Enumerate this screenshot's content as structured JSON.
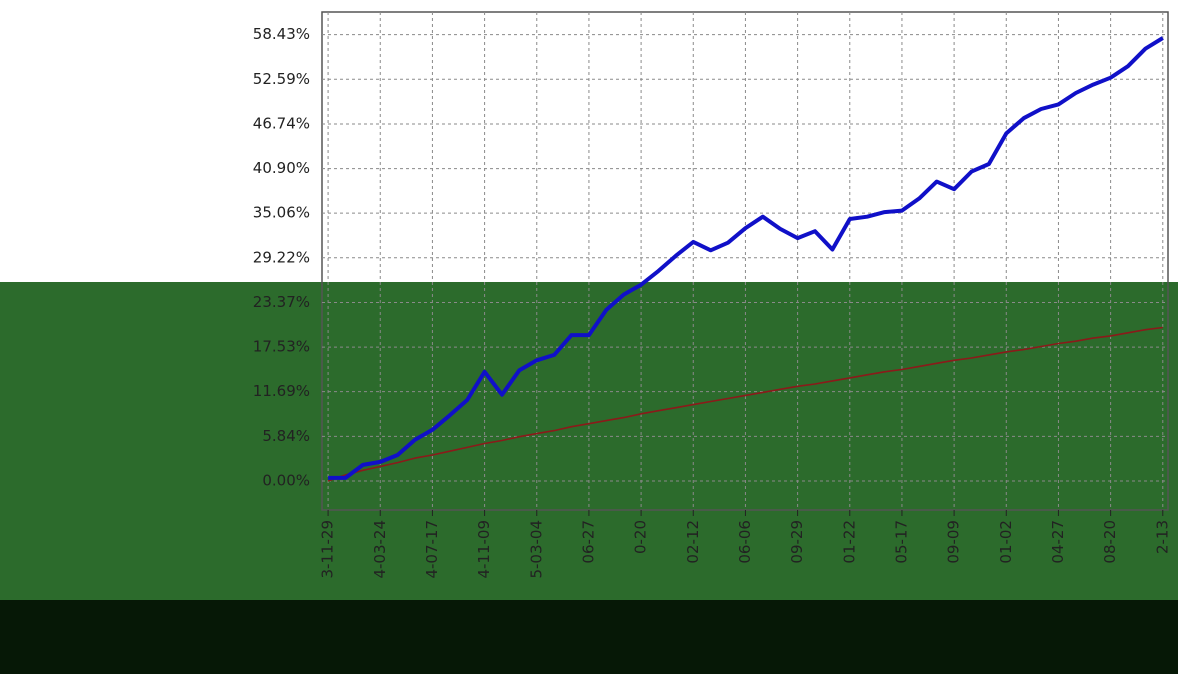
{
  "chart_data": {
    "type": "line",
    "x": [
      0,
      1,
      2,
      3,
      4,
      5,
      6,
      7,
      8,
      9,
      10,
      11,
      12,
      13,
      14,
      15,
      16,
      17,
      18,
      19,
      20,
      21,
      22,
      23,
      24,
      25,
      26,
      27,
      28,
      29,
      30,
      31,
      32,
      33,
      34,
      35,
      36,
      37,
      38,
      39,
      40,
      41,
      42,
      43,
      44,
      45,
      46,
      47,
      48
    ],
    "series": [
      {
        "color": "#1010c8",
        "values": [
          0.4,
          0.4,
          2.1,
          2.5,
          3.4,
          5.4,
          6.7,
          8.6,
          10.6,
          14.3,
          11.3,
          14.5,
          15.8,
          16.5,
          19.1,
          19.1,
          22.4,
          24.4,
          25.7,
          27.5,
          29.5,
          31.3,
          30.2,
          31.2,
          33.1,
          34.6,
          33.0,
          31.8,
          32.7,
          30.3,
          34.3,
          34.6,
          35.2,
          35.4,
          37.0,
          39.2,
          38.2,
          40.5,
          41.5,
          45.5,
          47.5,
          48.7,
          49.3,
          50.8,
          51.9,
          52.8,
          54.3,
          56.6,
          58.0
        ]
      },
      {
        "color": "#8b1a1a",
        "values": [
          0,
          0.8,
          1.4,
          1.9,
          2.4,
          3.0,
          3.4,
          3.9,
          4.4,
          4.9,
          5.3,
          5.8,
          6.2,
          6.6,
          7.1,
          7.5,
          7.9,
          8.3,
          8.8,
          9.2,
          9.6,
          10.0,
          10.4,
          10.8,
          11.2,
          11.6,
          12.0,
          12.4,
          12.7,
          13.1,
          13.5,
          13.9,
          14.3,
          14.6,
          15.0,
          15.4,
          15.8,
          16.1,
          16.5,
          16.9,
          17.2,
          17.6,
          18.0,
          18.3,
          18.7,
          19.0,
          19.4,
          19.8,
          20.1
        ]
      }
    ],
    "xlim": [
      -0.35,
      48.3
    ],
    "xticks": [
      {
        "value": 0,
        "label": "3-11-29"
      },
      {
        "value": 3,
        "label": "4-03-24"
      },
      {
        "value": 6,
        "label": "4-07-17"
      },
      {
        "value": 9,
        "label": "4-11-09"
      },
      {
        "value": 12,
        "label": "5-03-04"
      },
      {
        "value": 15,
        "label": "06-27"
      },
      {
        "value": 18,
        "label": "0-20"
      },
      {
        "value": 21,
        "label": "02-12"
      },
      {
        "value": 24,
        "label": "06-06"
      },
      {
        "value": 27,
        "label": "09-29"
      },
      {
        "value": 30,
        "label": "01-22"
      },
      {
        "value": 33,
        "label": "05-17"
      },
      {
        "value": 36,
        "label": "09-09"
      },
      {
        "value": 39,
        "label": "01-02"
      },
      {
        "value": 42,
        "label": "04-27"
      },
      {
        "value": 45,
        "label": "08-20"
      },
      {
        "value": 48,
        "label": "2-13"
      }
    ],
    "ylim": [
      -3.8,
      61.4
    ],
    "yticks": [
      {
        "value": 0,
        "label": "0.00%"
      },
      {
        "value": 5.84,
        "label": "5.84%"
      },
      {
        "value": 11.69,
        "label": "11.69%"
      },
      {
        "value": 17.53,
        "label": "17.53%"
      },
      {
        "value": 23.37,
        "label": "23.37%"
      },
      {
        "value": 29.22,
        "label": "29.22%"
      },
      {
        "value": 35.06,
        "label": "35.06%"
      },
      {
        "value": 40.9,
        "label": "40.90%"
      },
      {
        "value": 46.74,
        "label": "46.74%"
      },
      {
        "value": 52.59,
        "label": "52.59%"
      },
      {
        "value": 58.43,
        "label": "58.43%"
      }
    ],
    "grid": true
  }
}
